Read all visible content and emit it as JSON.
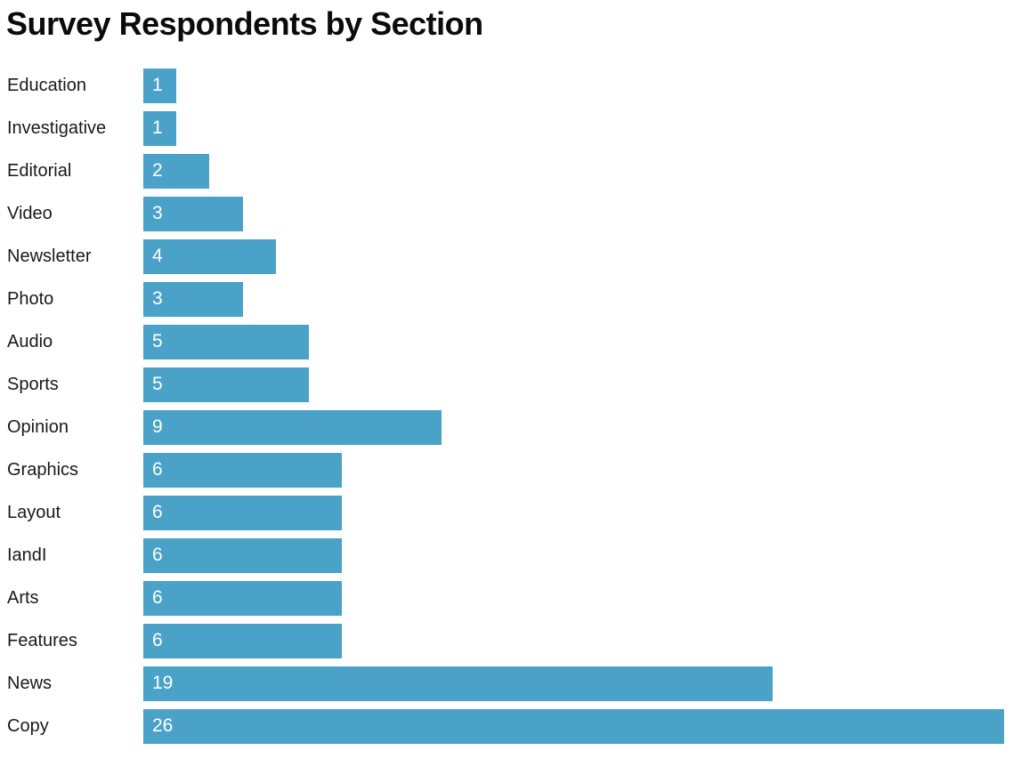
{
  "chart_data": {
    "type": "bar",
    "orientation": "horizontal",
    "title": "Survey Respondents by Section",
    "categories": [
      "Education",
      "Investigative",
      "Editorial",
      "Video",
      "Newsletter",
      "Photo",
      "Audio",
      "Sports",
      "Opinion",
      "Graphics",
      "Layout",
      "IandI",
      "Arts",
      "Features",
      "News",
      "Copy"
    ],
    "values": [
      1,
      1,
      2,
      3,
      4,
      3,
      5,
      5,
      9,
      6,
      6,
      6,
      6,
      6,
      19,
      26
    ],
    "xlabel": "",
    "ylabel": "",
    "xlim": [
      0,
      26
    ],
    "grid": false,
    "legend": false,
    "value_labels": "inside-left",
    "colors": {
      "bar": "#4aa2c9",
      "value_label": "#ffffff",
      "category_label": "#1a1a1a",
      "title": "#0b0b0b",
      "background": "#ffffff"
    }
  }
}
